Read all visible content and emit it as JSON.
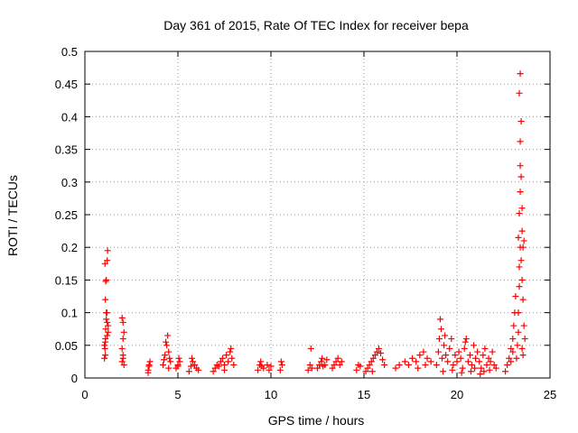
{
  "chart_data": {
    "type": "scatter",
    "title": "Day 361 of 2015, Rate Of TEC Index for receiver bepa",
    "xlabel": "GPS time / hours",
    "ylabel": "ROTI / TECUs",
    "xlim": [
      0,
      25
    ],
    "ylim": [
      0,
      0.5
    ],
    "xticks": [
      0,
      5,
      10,
      15,
      20,
      25
    ],
    "xtick_labels": [
      "0",
      "5",
      "10",
      "15",
      "20",
      "25"
    ],
    "yticks": [
      0,
      0.05,
      0.1,
      0.15,
      0.2,
      0.25,
      0.3,
      0.35,
      0.4,
      0.45,
      0.5
    ],
    "ytick_labels": [
      "0",
      "0.05",
      "0.1",
      "0.15",
      "0.2",
      "0.25",
      "0.3",
      "0.35",
      "0.4",
      "0.45",
      "0.5"
    ],
    "grid": true,
    "marker": "+",
    "series": [
      {
        "name": "ROTI",
        "color": "#ff0000",
        "points": [
          [
            1.05,
            0.03
          ],
          [
            1.08,
            0.045
          ],
          [
            1.1,
            0.06
          ],
          [
            1.12,
            0.075
          ],
          [
            1.15,
            0.09
          ],
          [
            1.18,
            0.1
          ],
          [
            1.1,
            0.12
          ],
          [
            1.12,
            0.148
          ],
          [
            1.15,
            0.15
          ],
          [
            1.08,
            0.175
          ],
          [
            1.2,
            0.18
          ],
          [
            1.22,
            0.195
          ],
          [
            1.25,
            0.08
          ],
          [
            1.05,
            0.05
          ],
          [
            1.2,
            0.065
          ],
          [
            1.1,
            0.035
          ],
          [
            1.15,
            0.1
          ],
          [
            1.2,
            0.085
          ],
          [
            1.25,
            0.07
          ],
          [
            1.1,
            0.055
          ],
          [
            2.0,
            0.025
          ],
          [
            2.05,
            0.035
          ],
          [
            2.0,
            0.045
          ],
          [
            2.05,
            0.06
          ],
          [
            2.1,
            0.07
          ],
          [
            2.05,
            0.085
          ],
          [
            2.0,
            0.092
          ],
          [
            2.1,
            0.02
          ],
          [
            2.05,
            0.03
          ],
          [
            3.4,
            0.012
          ],
          [
            3.45,
            0.02
          ],
          [
            3.5,
            0.025
          ],
          [
            3.45,
            0.018
          ],
          [
            3.4,
            0.008
          ],
          [
            4.2,
            0.02
          ],
          [
            4.3,
            0.035
          ],
          [
            4.4,
            0.05
          ],
          [
            4.45,
            0.065
          ],
          [
            4.5,
            0.04
          ],
          [
            4.55,
            0.03
          ],
          [
            4.6,
            0.025
          ],
          [
            4.35,
            0.055
          ],
          [
            4.25,
            0.028
          ],
          [
            4.5,
            0.015
          ],
          [
            4.9,
            0.015
          ],
          [
            5.0,
            0.02
          ],
          [
            5.05,
            0.03
          ],
          [
            5.1,
            0.025
          ],
          [
            5.0,
            0.018
          ],
          [
            5.6,
            0.01
          ],
          [
            5.7,
            0.018
          ],
          [
            5.8,
            0.025
          ],
          [
            5.9,
            0.02
          ],
          [
            6.0,
            0.015
          ],
          [
            6.1,
            0.012
          ],
          [
            5.75,
            0.03
          ],
          [
            6.9,
            0.01
          ],
          [
            7.0,
            0.015
          ],
          [
            7.1,
            0.02
          ],
          [
            7.2,
            0.018
          ],
          [
            7.3,
            0.025
          ],
          [
            7.4,
            0.03
          ],
          [
            7.5,
            0.02
          ],
          [
            7.6,
            0.035
          ],
          [
            7.7,
            0.025
          ],
          [
            7.8,
            0.04
          ],
          [
            7.9,
            0.03
          ],
          [
            8.0,
            0.02
          ],
          [
            7.85,
            0.045
          ],
          [
            7.5,
            0.012
          ],
          [
            9.3,
            0.012
          ],
          [
            9.4,
            0.02
          ],
          [
            9.5,
            0.018
          ],
          [
            9.6,
            0.015
          ],
          [
            9.8,
            0.02
          ],
          [
            9.9,
            0.012
          ],
          [
            10.0,
            0.018
          ],
          [
            9.45,
            0.025
          ],
          [
            10.5,
            0.012
          ],
          [
            10.6,
            0.02
          ],
          [
            10.55,
            0.025
          ],
          [
            12.0,
            0.012
          ],
          [
            12.1,
            0.02
          ],
          [
            12.15,
            0.045
          ],
          [
            12.2,
            0.015
          ],
          [
            12.5,
            0.015
          ],
          [
            12.6,
            0.02
          ],
          [
            12.7,
            0.025
          ],
          [
            12.8,
            0.018
          ],
          [
            12.9,
            0.02
          ],
          [
            13.0,
            0.028
          ],
          [
            12.75,
            0.03
          ],
          [
            13.3,
            0.015
          ],
          [
            13.4,
            0.02
          ],
          [
            13.5,
            0.025
          ],
          [
            13.6,
            0.03
          ],
          [
            13.7,
            0.02
          ],
          [
            13.8,
            0.025
          ],
          [
            14.6,
            0.012
          ],
          [
            14.7,
            0.02
          ],
          [
            14.8,
            0.018
          ],
          [
            15.1,
            0.01
          ],
          [
            15.2,
            0.015
          ],
          [
            15.3,
            0.02
          ],
          [
            15.4,
            0.025
          ],
          [
            15.5,
            0.03
          ],
          [
            15.6,
            0.035
          ],
          [
            15.7,
            0.04
          ],
          [
            15.8,
            0.045
          ],
          [
            15.9,
            0.038
          ],
          [
            16.0,
            0.028
          ],
          [
            16.1,
            0.02
          ],
          [
            15.45,
            0.01
          ],
          [
            16.7,
            0.015
          ],
          [
            16.9,
            0.02
          ],
          [
            17.2,
            0.025
          ],
          [
            17.4,
            0.02
          ],
          [
            17.6,
            0.03
          ],
          [
            17.8,
            0.025
          ],
          [
            18.0,
            0.035
          ],
          [
            18.2,
            0.04
          ],
          [
            18.4,
            0.03
          ],
          [
            18.6,
            0.025
          ],
          [
            17.9,
            0.015
          ],
          [
            18.3,
            0.02
          ],
          [
            18.9,
            0.02
          ],
          [
            19.0,
            0.04
          ],
          [
            19.05,
            0.06
          ],
          [
            19.1,
            0.09
          ],
          [
            19.15,
            0.075
          ],
          [
            19.2,
            0.03
          ],
          [
            19.3,
            0.05
          ],
          [
            19.4,
            0.035
          ],
          [
            19.5,
            0.025
          ],
          [
            19.6,
            0.045
          ],
          [
            19.7,
            0.06
          ],
          [
            19.8,
            0.02
          ],
          [
            19.9,
            0.035
          ],
          [
            20.0,
            0.025
          ],
          [
            20.1,
            0.04
          ],
          [
            20.2,
            0.03
          ],
          [
            20.3,
            0.015
          ],
          [
            20.4,
            0.045
          ],
          [
            20.5,
            0.06
          ],
          [
            20.6,
            0.025
          ],
          [
            20.7,
            0.035
          ],
          [
            20.8,
            0.02
          ],
          [
            20.9,
            0.05
          ],
          [
            21.0,
            0.03
          ],
          [
            21.1,
            0.04
          ],
          [
            21.2,
            0.025
          ],
          [
            21.3,
            0.015
          ],
          [
            21.4,
            0.035
          ],
          [
            21.5,
            0.045
          ],
          [
            21.6,
            0.02
          ],
          [
            21.7,
            0.03
          ],
          [
            21.8,
            0.025
          ],
          [
            21.9,
            0.04
          ],
          [
            22.0,
            0.02
          ],
          [
            22.1,
            0.015
          ],
          [
            19.25,
            0.01
          ],
          [
            19.75,
            0.012
          ],
          [
            20.25,
            0.008
          ],
          [
            20.75,
            0.01
          ],
          [
            21.25,
            0.006
          ],
          [
            21.75,
            0.012
          ],
          [
            19.35,
            0.065
          ],
          [
            20.45,
            0.055
          ],
          [
            20.95,
            0.015
          ],
          [
            21.45,
            0.01
          ],
          [
            22.6,
            0.01
          ],
          [
            22.7,
            0.02
          ],
          [
            22.8,
            0.03
          ],
          [
            22.9,
            0.045
          ],
          [
            23.0,
            0.06
          ],
          [
            23.05,
            0.08
          ],
          [
            23.1,
            0.1
          ],
          [
            23.15,
            0.125
          ],
          [
            23.0,
            0.04
          ],
          [
            22.9,
            0.025
          ],
          [
            23.2,
            0.03
          ],
          [
            23.25,
            0.05
          ],
          [
            23.3,
            0.07
          ],
          [
            23.3,
            0.1
          ],
          [
            23.35,
            0.14
          ],
          [
            23.35,
            0.17
          ],
          [
            23.4,
            0.2
          ],
          [
            23.3,
            0.215
          ],
          [
            23.35,
            0.252
          ],
          [
            23.4,
            0.285
          ],
          [
            23.4,
            0.325
          ],
          [
            23.45,
            0.308
          ],
          [
            23.4,
            0.362
          ],
          [
            23.45,
            0.393
          ],
          [
            23.35,
            0.436
          ],
          [
            23.4,
            0.466
          ],
          [
            23.5,
            0.225
          ],
          [
            23.55,
            0.2
          ],
          [
            23.6,
            0.21
          ],
          [
            23.5,
            0.15
          ],
          [
            23.55,
            0.12
          ],
          [
            23.6,
            0.08
          ],
          [
            23.65,
            0.06
          ],
          [
            23.5,
            0.045
          ],
          [
            23.55,
            0.035
          ],
          [
            23.45,
            0.18
          ],
          [
            23.5,
            0.26
          ]
        ]
      }
    ]
  }
}
